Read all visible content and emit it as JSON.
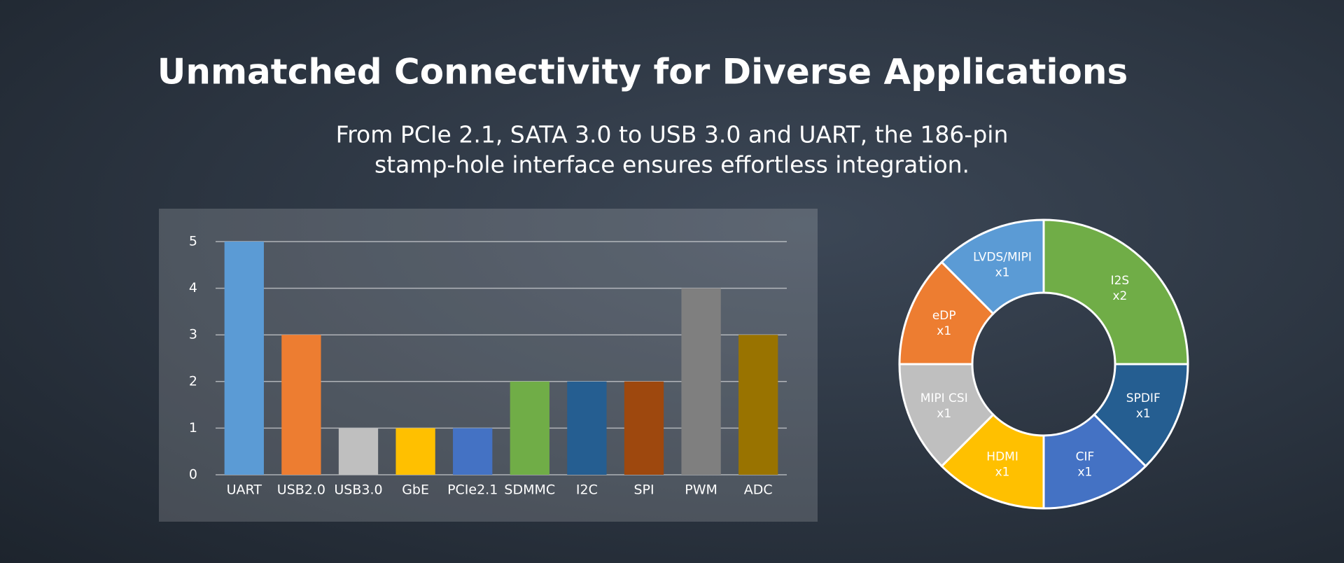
{
  "header": {
    "title": "Unmatched Connectivity for Diverse Applications",
    "subtitle": [
      "From PCIe 2.1, SATA 3.0 to USB 3.0 and UART, the 186-pin",
      "stamp-hole interface ensures effortless integration."
    ]
  },
  "chart_data": [
    {
      "type": "bar",
      "categories": [
        "UART",
        "USB2.0",
        "USB3.0",
        "GbE",
        "PCIe2.1",
        "SDMMC",
        "I2C",
        "SPI",
        "PWM",
        "ADC"
      ],
      "values": [
        5,
        3,
        1,
        1,
        1,
        2,
        2,
        2,
        4,
        3
      ],
      "colors": [
        "#5b9bd5",
        "#ed7d31",
        "#bfbfbf",
        "#ffc000",
        "#4472c4",
        "#70ad47",
        "#255e91",
        "#9e480e",
        "#7f7f7f",
        "#997300"
      ],
      "ylim": [
        0,
        5
      ],
      "yticks": [
        0,
        1,
        2,
        3,
        4,
        5
      ],
      "grid": true
    },
    {
      "type": "pie",
      "categories": [
        "I2S",
        "SPDIF",
        "CIF",
        "HDMI",
        "MIPI CSI",
        "eDP",
        "LVDS/MIPI"
      ],
      "values": [
        2,
        1,
        1,
        1,
        1,
        1,
        1
      ],
      "value_labels": [
        "x2",
        "x1",
        "x1",
        "x1",
        "x1",
        "x1",
        "x1"
      ],
      "colors": [
        "#70ad47",
        "#255e91",
        "#4472c4",
        "#ffc000",
        "#bfbfbf",
        "#ed7d31",
        "#5b9bd5"
      ],
      "donut": true
    }
  ]
}
